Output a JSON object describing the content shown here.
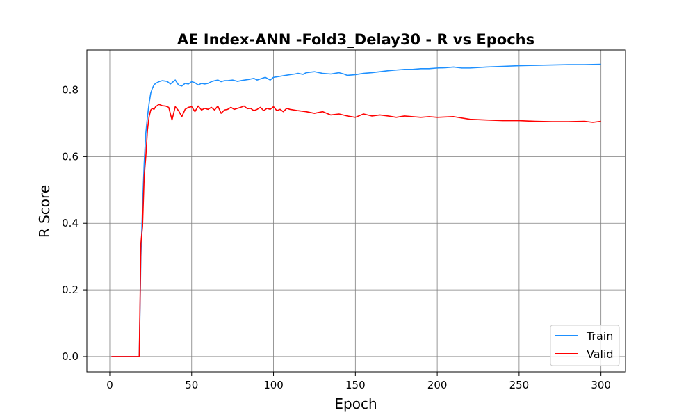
{
  "chart_data": {
    "type": "line",
    "title": "AE Index-ANN -Fold3_Delay30 - R vs Epochs",
    "xlabel": "Epoch",
    "ylabel": "R Score",
    "xlim": [
      -14,
      315
    ],
    "ylim": [
      -0.046,
      0.92
    ],
    "xticks": [
      0,
      50,
      100,
      150,
      200,
      250,
      300
    ],
    "yticks": [
      0.0,
      0.2,
      0.4,
      0.6,
      0.8
    ],
    "xtick_labels": [
      "0",
      "50",
      "100",
      "150",
      "200",
      "250",
      "300"
    ],
    "ytick_labels": [
      "0.0",
      "0.2",
      "0.4",
      "0.6",
      "0.8"
    ],
    "grid": true,
    "legend_position": "lower-right",
    "series": [
      {
        "name": "Train",
        "color": "#1E90FF",
        "x": [
          1,
          18,
          19,
          20,
          21,
          22,
          23,
          24,
          25,
          26,
          27,
          28,
          30,
          32,
          35,
          37,
          40,
          42,
          44,
          46,
          48,
          50,
          52,
          54,
          56,
          58,
          60,
          62,
          64,
          66,
          68,
          70,
          72,
          75,
          78,
          80,
          85,
          88,
          90,
          93,
          95,
          98,
          100,
          105,
          110,
          113,
          115,
          118,
          120,
          125,
          130,
          135,
          140,
          143,
          145,
          150,
          155,
          160,
          165,
          170,
          175,
          180,
          185,
          190,
          195,
          200,
          205,
          210,
          215,
          220,
          230,
          240,
          250,
          260,
          270,
          280,
          290,
          300
        ],
        "y": [
          0.0,
          0.0,
          0.3,
          0.45,
          0.58,
          0.67,
          0.72,
          0.76,
          0.79,
          0.805,
          0.815,
          0.82,
          0.825,
          0.828,
          0.826,
          0.818,
          0.83,
          0.815,
          0.812,
          0.82,
          0.818,
          0.825,
          0.822,
          0.815,
          0.82,
          0.818,
          0.82,
          0.825,
          0.828,
          0.83,
          0.825,
          0.828,
          0.828,
          0.83,
          0.826,
          0.828,
          0.832,
          0.835,
          0.83,
          0.835,
          0.838,
          0.83,
          0.838,
          0.842,
          0.846,
          0.848,
          0.85,
          0.847,
          0.852,
          0.855,
          0.85,
          0.848,
          0.852,
          0.848,
          0.844,
          0.846,
          0.85,
          0.852,
          0.855,
          0.858,
          0.86,
          0.862,
          0.862,
          0.864,
          0.864,
          0.866,
          0.867,
          0.869,
          0.866,
          0.866,
          0.869,
          0.871,
          0.873,
          0.874,
          0.875,
          0.876,
          0.876,
          0.877
        ]
      },
      {
        "name": "Valid",
        "color": "#FF0000",
        "x": [
          1,
          18,
          19,
          20,
          21,
          22,
          23,
          24,
          25,
          26,
          27,
          28,
          30,
          32,
          34,
          36,
          38,
          40,
          42,
          44,
          46,
          48,
          50,
          52,
          54,
          56,
          58,
          60,
          62,
          64,
          66,
          68,
          70,
          72,
          74,
          76,
          78,
          80,
          82,
          84,
          86,
          88,
          90,
          92,
          94,
          96,
          98,
          100,
          102,
          104,
          106,
          108,
          110,
          115,
          120,
          125,
          130,
          135,
          140,
          145,
          150,
          155,
          160,
          165,
          170,
          175,
          180,
          185,
          190,
          195,
          200,
          210,
          220,
          230,
          240,
          250,
          260,
          270,
          280,
          290,
          295,
          300
        ],
        "y": [
          0.0,
          0.0,
          0.34,
          0.39,
          0.54,
          0.6,
          0.68,
          0.72,
          0.74,
          0.745,
          0.742,
          0.75,
          0.757,
          0.753,
          0.752,
          0.748,
          0.71,
          0.75,
          0.738,
          0.72,
          0.742,
          0.748,
          0.75,
          0.735,
          0.752,
          0.74,
          0.745,
          0.742,
          0.748,
          0.74,
          0.752,
          0.73,
          0.74,
          0.742,
          0.748,
          0.742,
          0.745,
          0.748,
          0.752,
          0.744,
          0.745,
          0.738,
          0.742,
          0.748,
          0.738,
          0.745,
          0.742,
          0.75,
          0.738,
          0.742,
          0.735,
          0.745,
          0.742,
          0.738,
          0.735,
          0.73,
          0.735,
          0.725,
          0.728,
          0.722,
          0.718,
          0.728,
          0.722,
          0.725,
          0.722,
          0.718,
          0.722,
          0.72,
          0.718,
          0.72,
          0.718,
          0.72,
          0.712,
          0.71,
          0.708,
          0.708,
          0.706,
          0.705,
          0.705,
          0.706,
          0.703,
          0.706
        ]
      }
    ]
  }
}
